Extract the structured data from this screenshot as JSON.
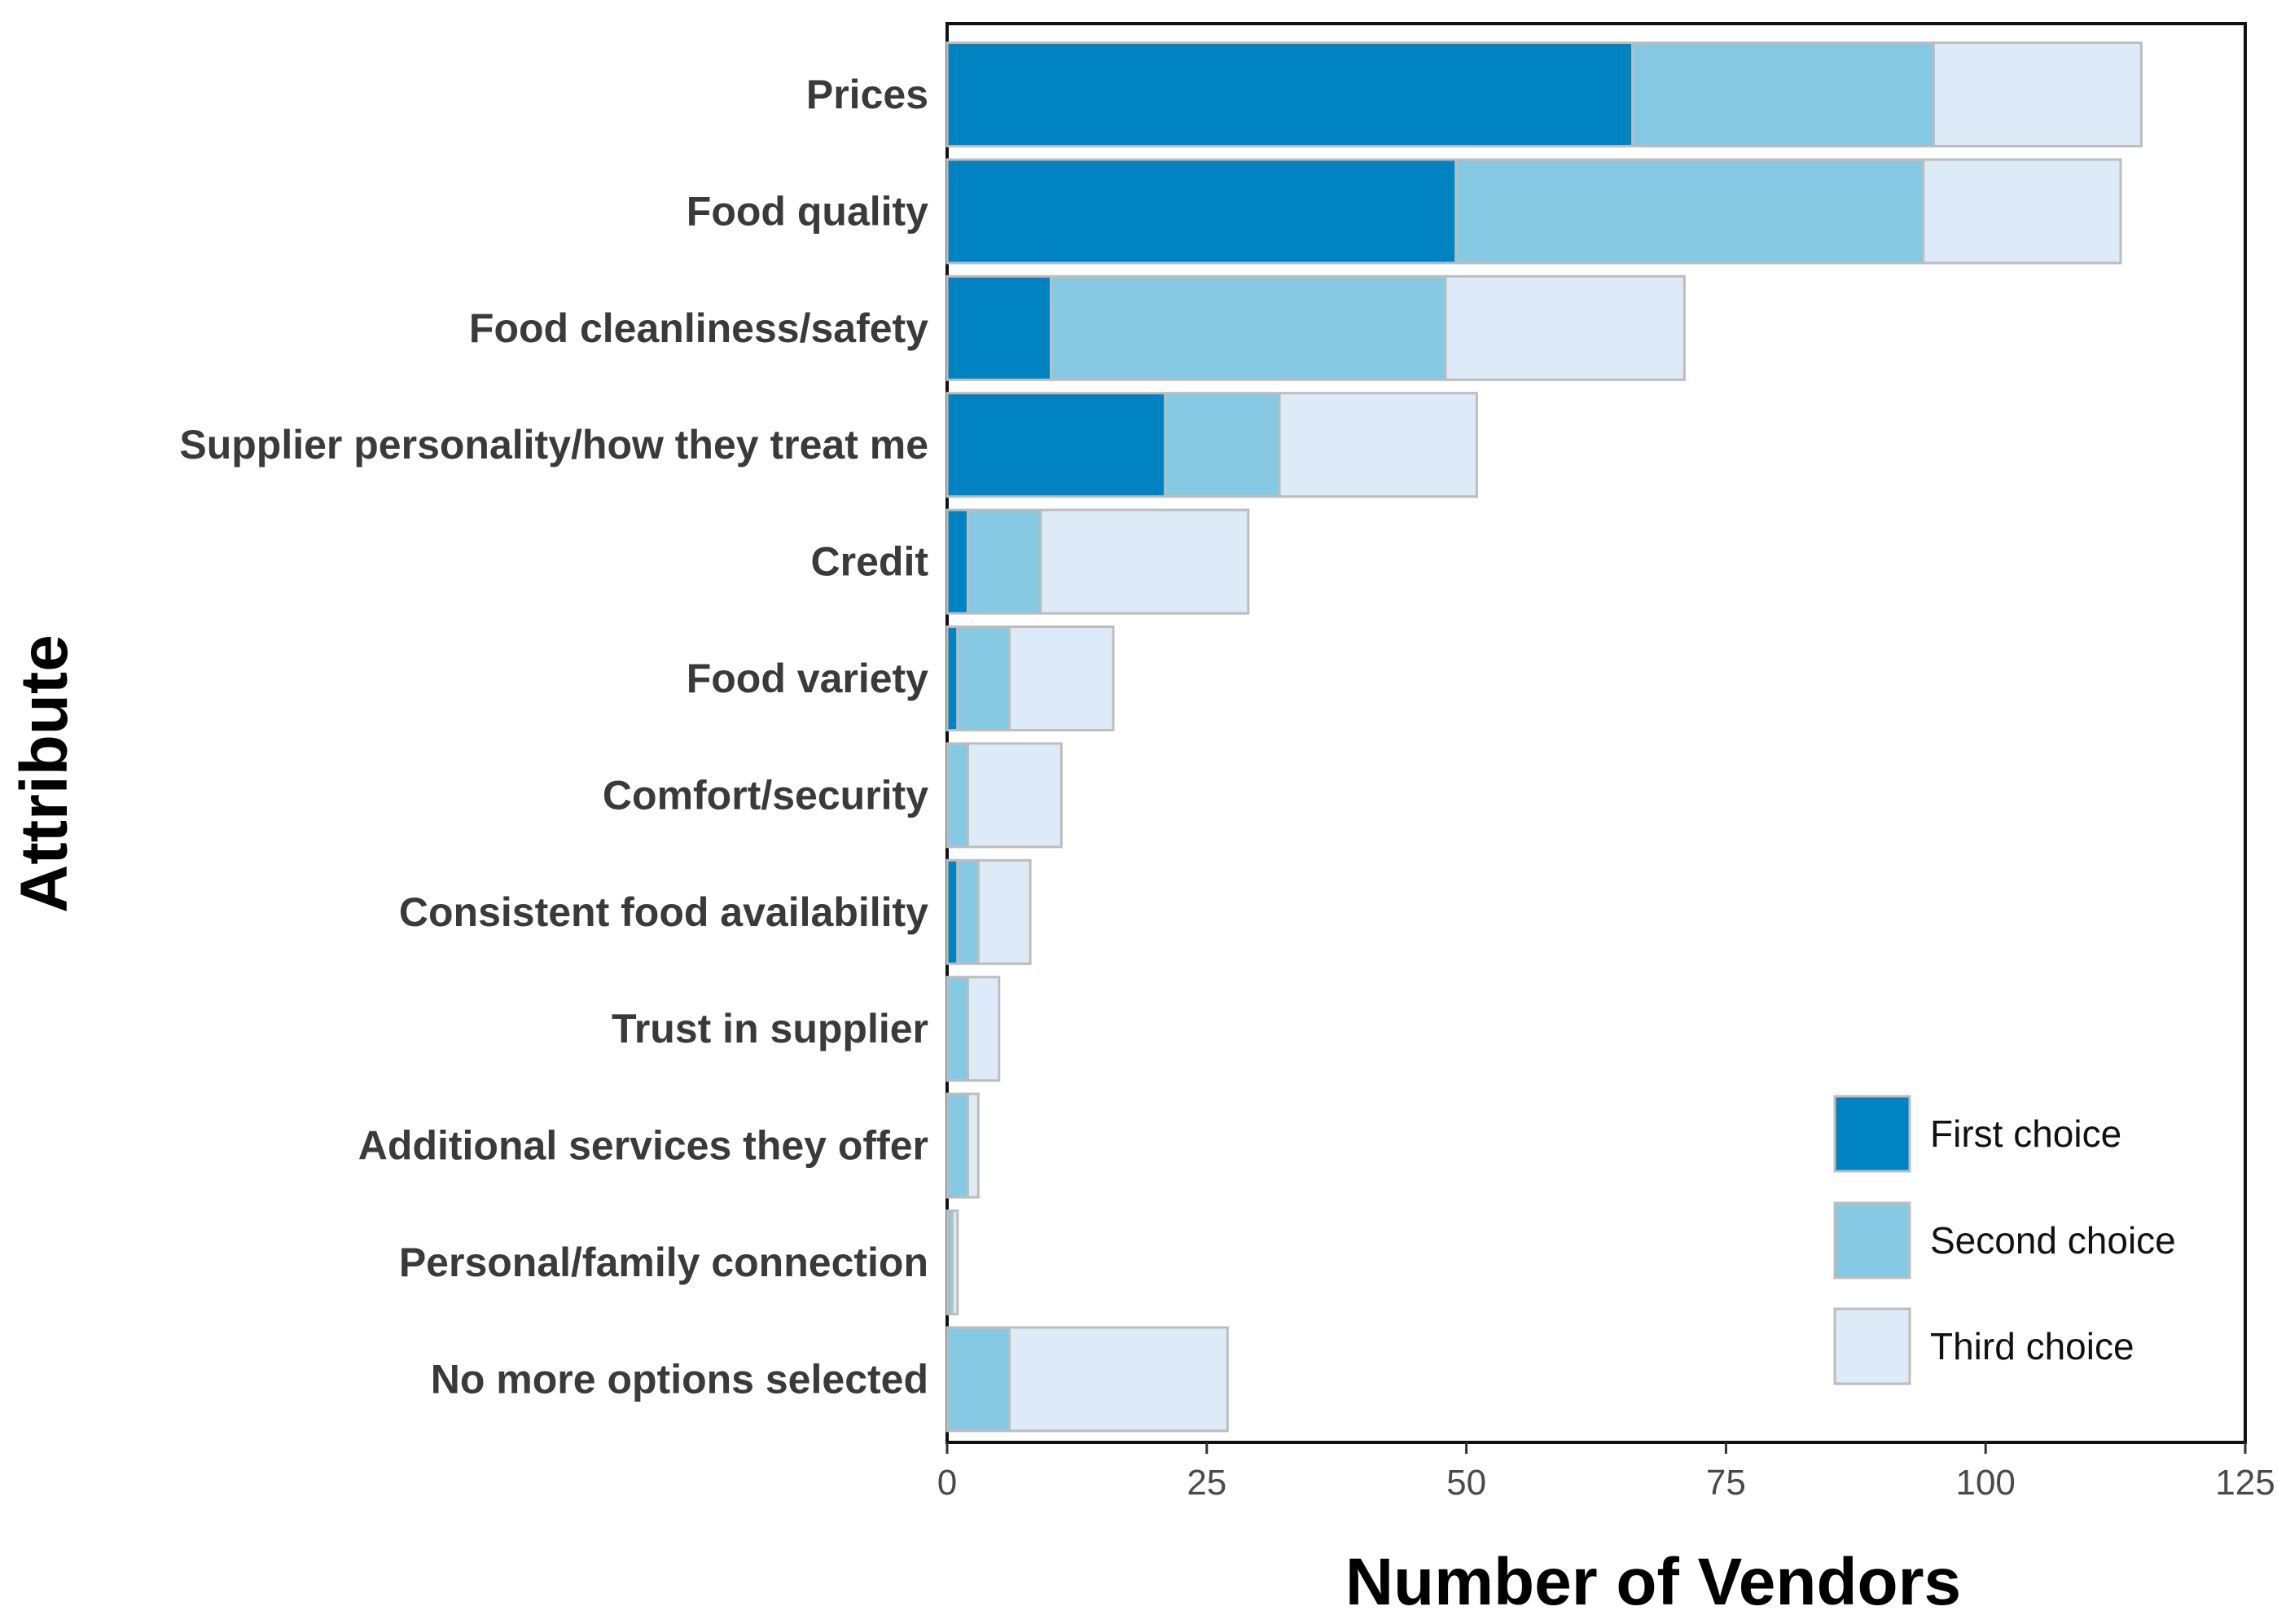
{
  "chart_data": {
    "type": "bar",
    "orientation": "horizontal",
    "stacked": true,
    "categories": [
      "Prices",
      "Food quality",
      "Food cleanliness/safety",
      "Supplier personality/how they treat me",
      "Credit",
      "Food variety",
      "Comfort/security",
      "Consistent food availability",
      "Trust in supplier",
      "Additional services they offer",
      "Personal/family connection",
      "No more options selected"
    ],
    "series": [
      {
        "name": "First choice",
        "color": "#0083c3",
        "values": [
          66,
          49,
          10,
          21,
          2,
          1,
          0,
          1,
          0,
          0,
          0,
          0
        ]
      },
      {
        "name": "Second choice",
        "color": "#86c9e3",
        "values": [
          29,
          45,
          38,
          11,
          7,
          5,
          2,
          2,
          2,
          2,
          0.5,
          6
        ]
      },
      {
        "name": "Third choice",
        "color": "#dcebf7",
        "values": [
          20,
          19,
          23,
          19,
          20,
          10,
          9,
          5,
          3,
          1,
          0.5,
          21
        ]
      }
    ],
    "xlabel": "Number of Vendors",
    "ylabel": "Attribute",
    "xlim": [
      0,
      125
    ],
    "xticks": [
      0,
      25,
      50,
      75,
      100,
      125
    ],
    "grid": false,
    "legend_position": "bottom-right"
  }
}
